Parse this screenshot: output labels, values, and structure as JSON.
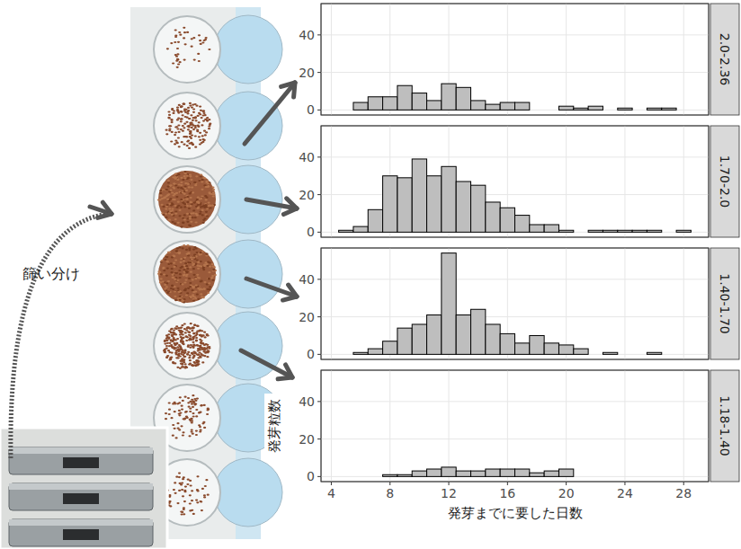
{
  "chart_data": [
    {
      "type": "histogram",
      "title": "2.0-2.36",
      "bins": [
        4.5,
        5.5,
        6.5,
        7.5,
        8.5,
        9.5,
        10.5,
        11.5,
        12.5,
        13.5,
        14.5,
        15.5,
        16.5,
        17.5,
        18.5,
        19.5,
        20.5,
        21.5,
        22.5,
        23.5,
        24.5,
        25.5,
        26.5,
        27.5,
        28.5
      ],
      "values": [
        0,
        4,
        7,
        7,
        13,
        9,
        5,
        14,
        12,
        5,
        3,
        4,
        4,
        0,
        0,
        2,
        1,
        2,
        0,
        1,
        0,
        1,
        1,
        0
      ],
      "color": "#bebebe",
      "xlim": [
        3.3,
        29.7
      ],
      "ylim": [
        -2.7,
        56.7
      ],
      "xticks": [
        4,
        8,
        12,
        16,
        20,
        24,
        28
      ],
      "yticks": [
        0,
        20,
        40
      ],
      "grid": true,
      "tick_labels": "y"
    },
    {
      "type": "histogram",
      "title": "1.70-2.0",
      "bins": [
        4.5,
        5.5,
        6.5,
        7.5,
        8.5,
        9.5,
        10.5,
        11.5,
        12.5,
        13.5,
        14.5,
        15.5,
        16.5,
        17.5,
        18.5,
        19.5,
        20.5,
        21.5,
        22.5,
        23.5,
        24.5,
        25.5,
        26.5,
        27.5,
        28.5
      ],
      "values": [
        1,
        3,
        12,
        30,
        29,
        39,
        30,
        35,
        27,
        25,
        16,
        13,
        9,
        4,
        4,
        1,
        0,
        1,
        1,
        1,
        1,
        1,
        0,
        1
      ],
      "color": "#bebebe",
      "xlim": [
        3.3,
        29.7
      ],
      "ylim": [
        -2.7,
        56.7
      ],
      "xticks": [
        4,
        8,
        12,
        16,
        20,
        24,
        28
      ],
      "yticks": [
        0,
        20,
        40
      ],
      "grid": true,
      "tick_labels": "y"
    },
    {
      "type": "histogram",
      "title": "1.40-1.70",
      "bins": [
        4.5,
        5.5,
        6.5,
        7.5,
        8.5,
        9.5,
        10.5,
        11.5,
        12.5,
        13.5,
        14.5,
        15.5,
        16.5,
        17.5,
        18.5,
        19.5,
        20.5,
        21.5,
        22.5,
        23.5,
        24.5,
        25.5,
        26.5,
        27.5,
        28.5
      ],
      "values": [
        0,
        1,
        3,
        7,
        14,
        16,
        21,
        54,
        21,
        24,
        16,
        11,
        6,
        10,
        6,
        5,
        3,
        0,
        1,
        0,
        0,
        1,
        0,
        0
      ],
      "color": "#bebebe",
      "xlim": [
        3.3,
        29.7
      ],
      "ylim": [
        -2.7,
        56.7
      ],
      "xticks": [
        4,
        8,
        12,
        16,
        20,
        24,
        28
      ],
      "yticks": [
        0,
        20,
        40
      ],
      "grid": true,
      "tick_labels": "y"
    },
    {
      "type": "histogram",
      "title": "1.18-1.40",
      "bins": [
        4.5,
        5.5,
        6.5,
        7.5,
        8.5,
        9.5,
        10.5,
        11.5,
        12.5,
        13.5,
        14.5,
        15.5,
        16.5,
        17.5,
        18.5,
        19.5,
        20.5,
        21.5,
        22.5,
        23.5,
        24.5,
        25.5,
        26.5,
        27.5,
        28.5
      ],
      "values": [
        0,
        0,
        0,
        1,
        1,
        3,
        4,
        5,
        3,
        3,
        4,
        4,
        4,
        2,
        3,
        4,
        0,
        0,
        0,
        0,
        0,
        0,
        0,
        0
      ],
      "color": "#bebebe",
      "xlim": [
        3.3,
        29.7
      ],
      "ylim": [
        -2.7,
        56.7
      ],
      "xticks": [
        4,
        8,
        12,
        16,
        20,
        24,
        28
      ],
      "yticks": [
        0,
        20,
        40
      ],
      "grid": true,
      "x_label": "発芽までに要した日数",
      "y_label": "発芽粒数"
    }
  ],
  "annotation": "篩い分け"
}
